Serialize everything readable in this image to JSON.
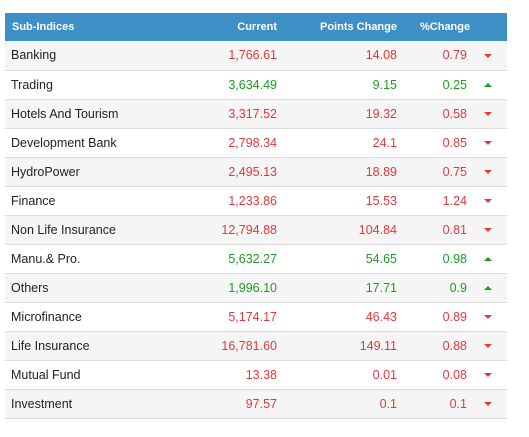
{
  "header": {
    "name": "Sub-Indices",
    "current": "Current",
    "points": "Points Change",
    "percent": "%Change"
  },
  "colors": {
    "up": "#199e1f",
    "down": "#e5383b",
    "header_bg": "#3d8fc6"
  },
  "rows": [
    {
      "name": "Banking",
      "current": "1,766.61",
      "points": "14.08",
      "percent": "0.79",
      "direction": "down"
    },
    {
      "name": "Trading",
      "current": "3,634.49",
      "points": "9.15",
      "percent": "0.25",
      "direction": "up"
    },
    {
      "name": "Hotels And Tourism",
      "current": "3,317.52",
      "points": "19.32",
      "percent": "0.58",
      "direction": "down"
    },
    {
      "name": "Development Bank",
      "current": "2,798.34",
      "points": "24.1",
      "percent": "0.85",
      "direction": "down"
    },
    {
      "name": "HydroPower",
      "current": "2,495.13",
      "points": "18.89",
      "percent": "0.75",
      "direction": "down"
    },
    {
      "name": "Finance",
      "current": "1,233.86",
      "points": "15.53",
      "percent": "1.24",
      "direction": "down"
    },
    {
      "name": "Non Life Insurance",
      "current": "12,794.88",
      "points": "104.84",
      "percent": "0.81",
      "direction": "down"
    },
    {
      "name": "Manu.& Pro.",
      "current": "5,632.27",
      "points": "54.65",
      "percent": "0.98",
      "direction": "up"
    },
    {
      "name": "Others",
      "current": "1,996.10",
      "points": "17.71",
      "percent": "0.9",
      "direction": "up"
    },
    {
      "name": "Microfinance",
      "current": "5,174.17",
      "points": "46.43",
      "percent": "0.89",
      "direction": "down"
    },
    {
      "name": "Life Insurance",
      "current": "16,781.60",
      "points": "149.11",
      "percent": "0.88",
      "direction": "down"
    },
    {
      "name": "Mutual Fund",
      "current": "13.38",
      "points": "0.01",
      "percent": "0.08",
      "direction": "down"
    },
    {
      "name": "Investment",
      "current": "97.57",
      "points": "0.1",
      "percent": "0.1",
      "direction": "down"
    }
  ]
}
